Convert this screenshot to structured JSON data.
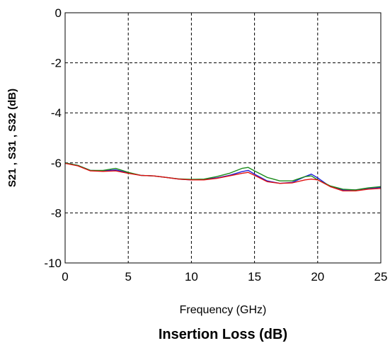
{
  "chart_data": {
    "type": "line",
    "xlabel": "Frequency (GHz)",
    "ylabel": "S21 , S31 , S32 (dB)",
    "caption": "Insertion Loss (dB)",
    "xlim": [
      0,
      25
    ],
    "ylim": [
      -10,
      0
    ],
    "xticks": [
      0,
      5,
      10,
      15,
      20,
      25
    ],
    "yticks": [
      0,
      -2,
      -4,
      -6,
      -8,
      -10
    ],
    "grid": true,
    "series": [
      {
        "color": "#1f1fd9",
        "x": [
          0,
          1,
          2,
          3,
          4,
          5,
          6,
          7,
          8,
          9,
          10,
          11,
          12,
          13,
          14,
          14.5,
          15,
          16,
          17,
          18,
          19,
          19.5,
          20,
          21,
          22,
          23,
          24,
          25
        ],
        "values": [
          -6.0,
          -6.1,
          -6.3,
          -6.32,
          -6.28,
          -6.4,
          -6.5,
          -6.52,
          -6.58,
          -6.65,
          -6.68,
          -6.66,
          -6.6,
          -6.5,
          -6.35,
          -6.3,
          -6.45,
          -6.72,
          -6.82,
          -6.78,
          -6.55,
          -6.45,
          -6.6,
          -6.95,
          -7.08,
          -7.08,
          -7.02,
          -6.98
        ]
      },
      {
        "color": "#1a8a1a",
        "x": [
          0,
          1,
          2,
          3,
          4,
          5,
          6,
          7,
          8,
          9,
          10,
          11,
          12,
          13,
          14,
          14.5,
          15,
          16,
          17,
          18,
          19,
          19.5,
          20,
          21,
          22,
          23,
          24,
          25
        ],
        "values": [
          -6.0,
          -6.1,
          -6.3,
          -6.3,
          -6.22,
          -6.38,
          -6.5,
          -6.52,
          -6.58,
          -6.64,
          -6.66,
          -6.65,
          -6.55,
          -6.42,
          -6.22,
          -6.18,
          -6.32,
          -6.58,
          -6.72,
          -6.72,
          -6.55,
          -6.52,
          -6.68,
          -6.92,
          -7.05,
          -7.08,
          -7.0,
          -6.95
        ]
      },
      {
        "color": "#e01010",
        "x": [
          0,
          1,
          2,
          3,
          4,
          5,
          6,
          7,
          8,
          9,
          10,
          11,
          12,
          13,
          14,
          14.5,
          15,
          16,
          17,
          18,
          19,
          19.5,
          20,
          21,
          22,
          23,
          24,
          25
        ],
        "values": [
          -6.02,
          -6.12,
          -6.32,
          -6.34,
          -6.32,
          -6.42,
          -6.5,
          -6.52,
          -6.58,
          -6.65,
          -6.68,
          -6.68,
          -6.62,
          -6.52,
          -6.42,
          -6.38,
          -6.5,
          -6.75,
          -6.82,
          -6.8,
          -6.68,
          -6.65,
          -6.68,
          -6.95,
          -7.12,
          -7.12,
          -7.05,
          -7.02
        ]
      }
    ]
  }
}
